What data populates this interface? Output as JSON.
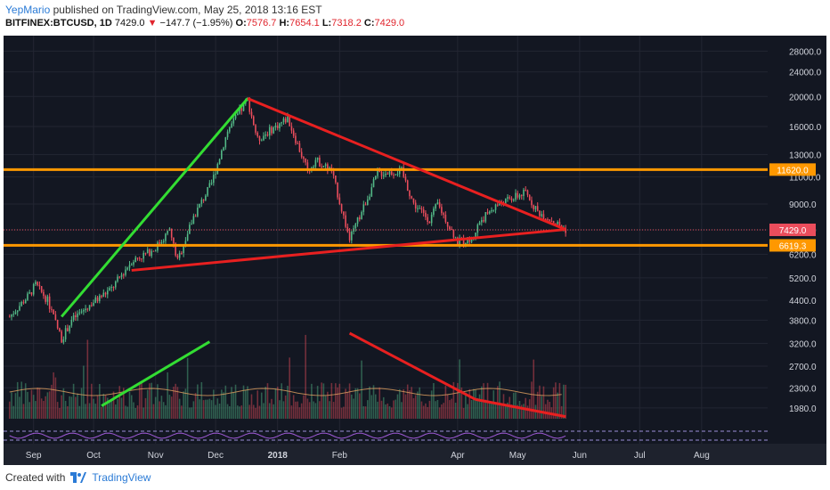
{
  "header": {
    "user": "YepMario",
    "published_text": "published on TradingView.com, May 25, 2018 13:16 EST",
    "symbol": "BITFINEX:BTCUSD, 1D",
    "last": "7429.0",
    "change_arrow": "▼",
    "change": "−147.7 (−1.95%)",
    "open_label": "O:",
    "open": "7576.7",
    "high_label": "H:",
    "high": "7654.1",
    "low_label": "L:",
    "low": "7318.2",
    "close_label": "C:",
    "close": "7429.0"
  },
  "footer": {
    "created_with": "Created with",
    "brand": "TradingView"
  },
  "colors": {
    "background": "#131722",
    "up": "#53b987",
    "down": "#eb4d5c",
    "orange": "#ff9800",
    "trend_red": "#e82020",
    "trend_green": "#33dd33",
    "grid": "#232632",
    "axis_text": "#d1d4dc"
  },
  "chart_data": {
    "type": "candlestick",
    "price_scale": "log",
    "y_ticks": [
      "28000.0",
      "24000.0",
      "20000.0",
      "16000.0",
      "13000.0",
      "11000.0",
      "9000.0",
      "7429.0",
      "6200.0",
      "5200.0",
      "4400.0",
      "3800.0",
      "3200.0",
      "2700.0",
      "2300.0",
      "1980.0"
    ],
    "x_ticks": [
      "Sep",
      "Oct",
      "Nov",
      "Dec",
      "2018",
      "Feb",
      "Apr",
      "May",
      "Jun",
      "Jul",
      "Aug"
    ],
    "price_labels": [
      {
        "text": "11620.0",
        "value": 11620,
        "color": "#ff9800"
      },
      {
        "text": "7429.0",
        "value": 7429,
        "color": "#eb4d5c"
      },
      {
        "text": "6619.3",
        "value": 6619.3,
        "color": "#ff9800"
      }
    ],
    "horizontal_levels": [
      11620,
      6619.3
    ],
    "ohlc_path": [
      [
        "2017-08-20",
        3900
      ],
      [
        "2017-08-30",
        4600
      ],
      [
        "2017-09-02",
        4950
      ],
      [
        "2017-09-08",
        4400
      ],
      [
        "2017-09-15",
        3300
      ],
      [
        "2017-09-20",
        3800
      ],
      [
        "2017-09-30",
        4300
      ],
      [
        "2017-10-10",
        4800
      ],
      [
        "2017-10-20",
        5900
      ],
      [
        "2017-10-31",
        6400
      ],
      [
        "2017-11-08",
        7400
      ],
      [
        "2017-11-12",
        5900
      ],
      [
        "2017-11-20",
        8200
      ],
      [
        "2017-11-29",
        10500
      ],
      [
        "2017-12-07",
        15500
      ],
      [
        "2017-12-17",
        19500
      ],
      [
        "2017-12-22",
        14500
      ],
      [
        "2017-12-28",
        15500
      ],
      [
        "2018-01-06",
        17000
      ],
      [
        "2018-01-16",
        11500
      ],
      [
        "2018-01-20",
        12500
      ],
      [
        "2018-01-28",
        11500
      ],
      [
        "2018-02-06",
        6900
      ],
      [
        "2018-02-12",
        8500
      ],
      [
        "2018-02-20",
        11300
      ],
      [
        "2018-03-04",
        11500
      ],
      [
        "2018-03-10",
        9000
      ],
      [
        "2018-03-18",
        8000
      ],
      [
        "2018-03-22",
        9000
      ],
      [
        "2018-04-01",
        6800
      ],
      [
        "2018-04-08",
        6900
      ],
      [
        "2018-04-12",
        7900
      ],
      [
        "2018-04-20",
        8900
      ],
      [
        "2018-05-05",
        9800
      ],
      [
        "2018-05-11",
        8500
      ],
      [
        "2018-05-18",
        8000
      ],
      [
        "2018-05-25",
        7429
      ]
    ],
    "trendlines": [
      {
        "color": "#33dd33",
        "from": [
          "2017-09-15",
          3900
        ],
        "to": [
          "2017-12-17",
          19700
        ]
      },
      {
        "color": "#e82020",
        "from": [
          "2017-12-17",
          19700
        ],
        "to": [
          "2018-05-25",
          7450
        ]
      },
      {
        "color": "#e82020",
        "from": [
          "2017-10-20",
          5500
        ],
        "to": [
          "2018-05-25",
          7450
        ]
      }
    ],
    "volume_trendlines": [
      {
        "color": "#33dd33",
        "from": [
          "2017-10-05",
          0.12
        ],
        "to": [
          "2017-11-28",
          0.72
        ]
      },
      {
        "color": "#e82020",
        "from": [
          "2018-02-06",
          0.8
        ],
        "to": [
          "2018-04-10",
          0.18
        ]
      },
      {
        "color": "#e82020",
        "from": [
          "2018-04-10",
          0.18
        ],
        "to": [
          "2018-05-25",
          0.02
        ]
      }
    ]
  }
}
